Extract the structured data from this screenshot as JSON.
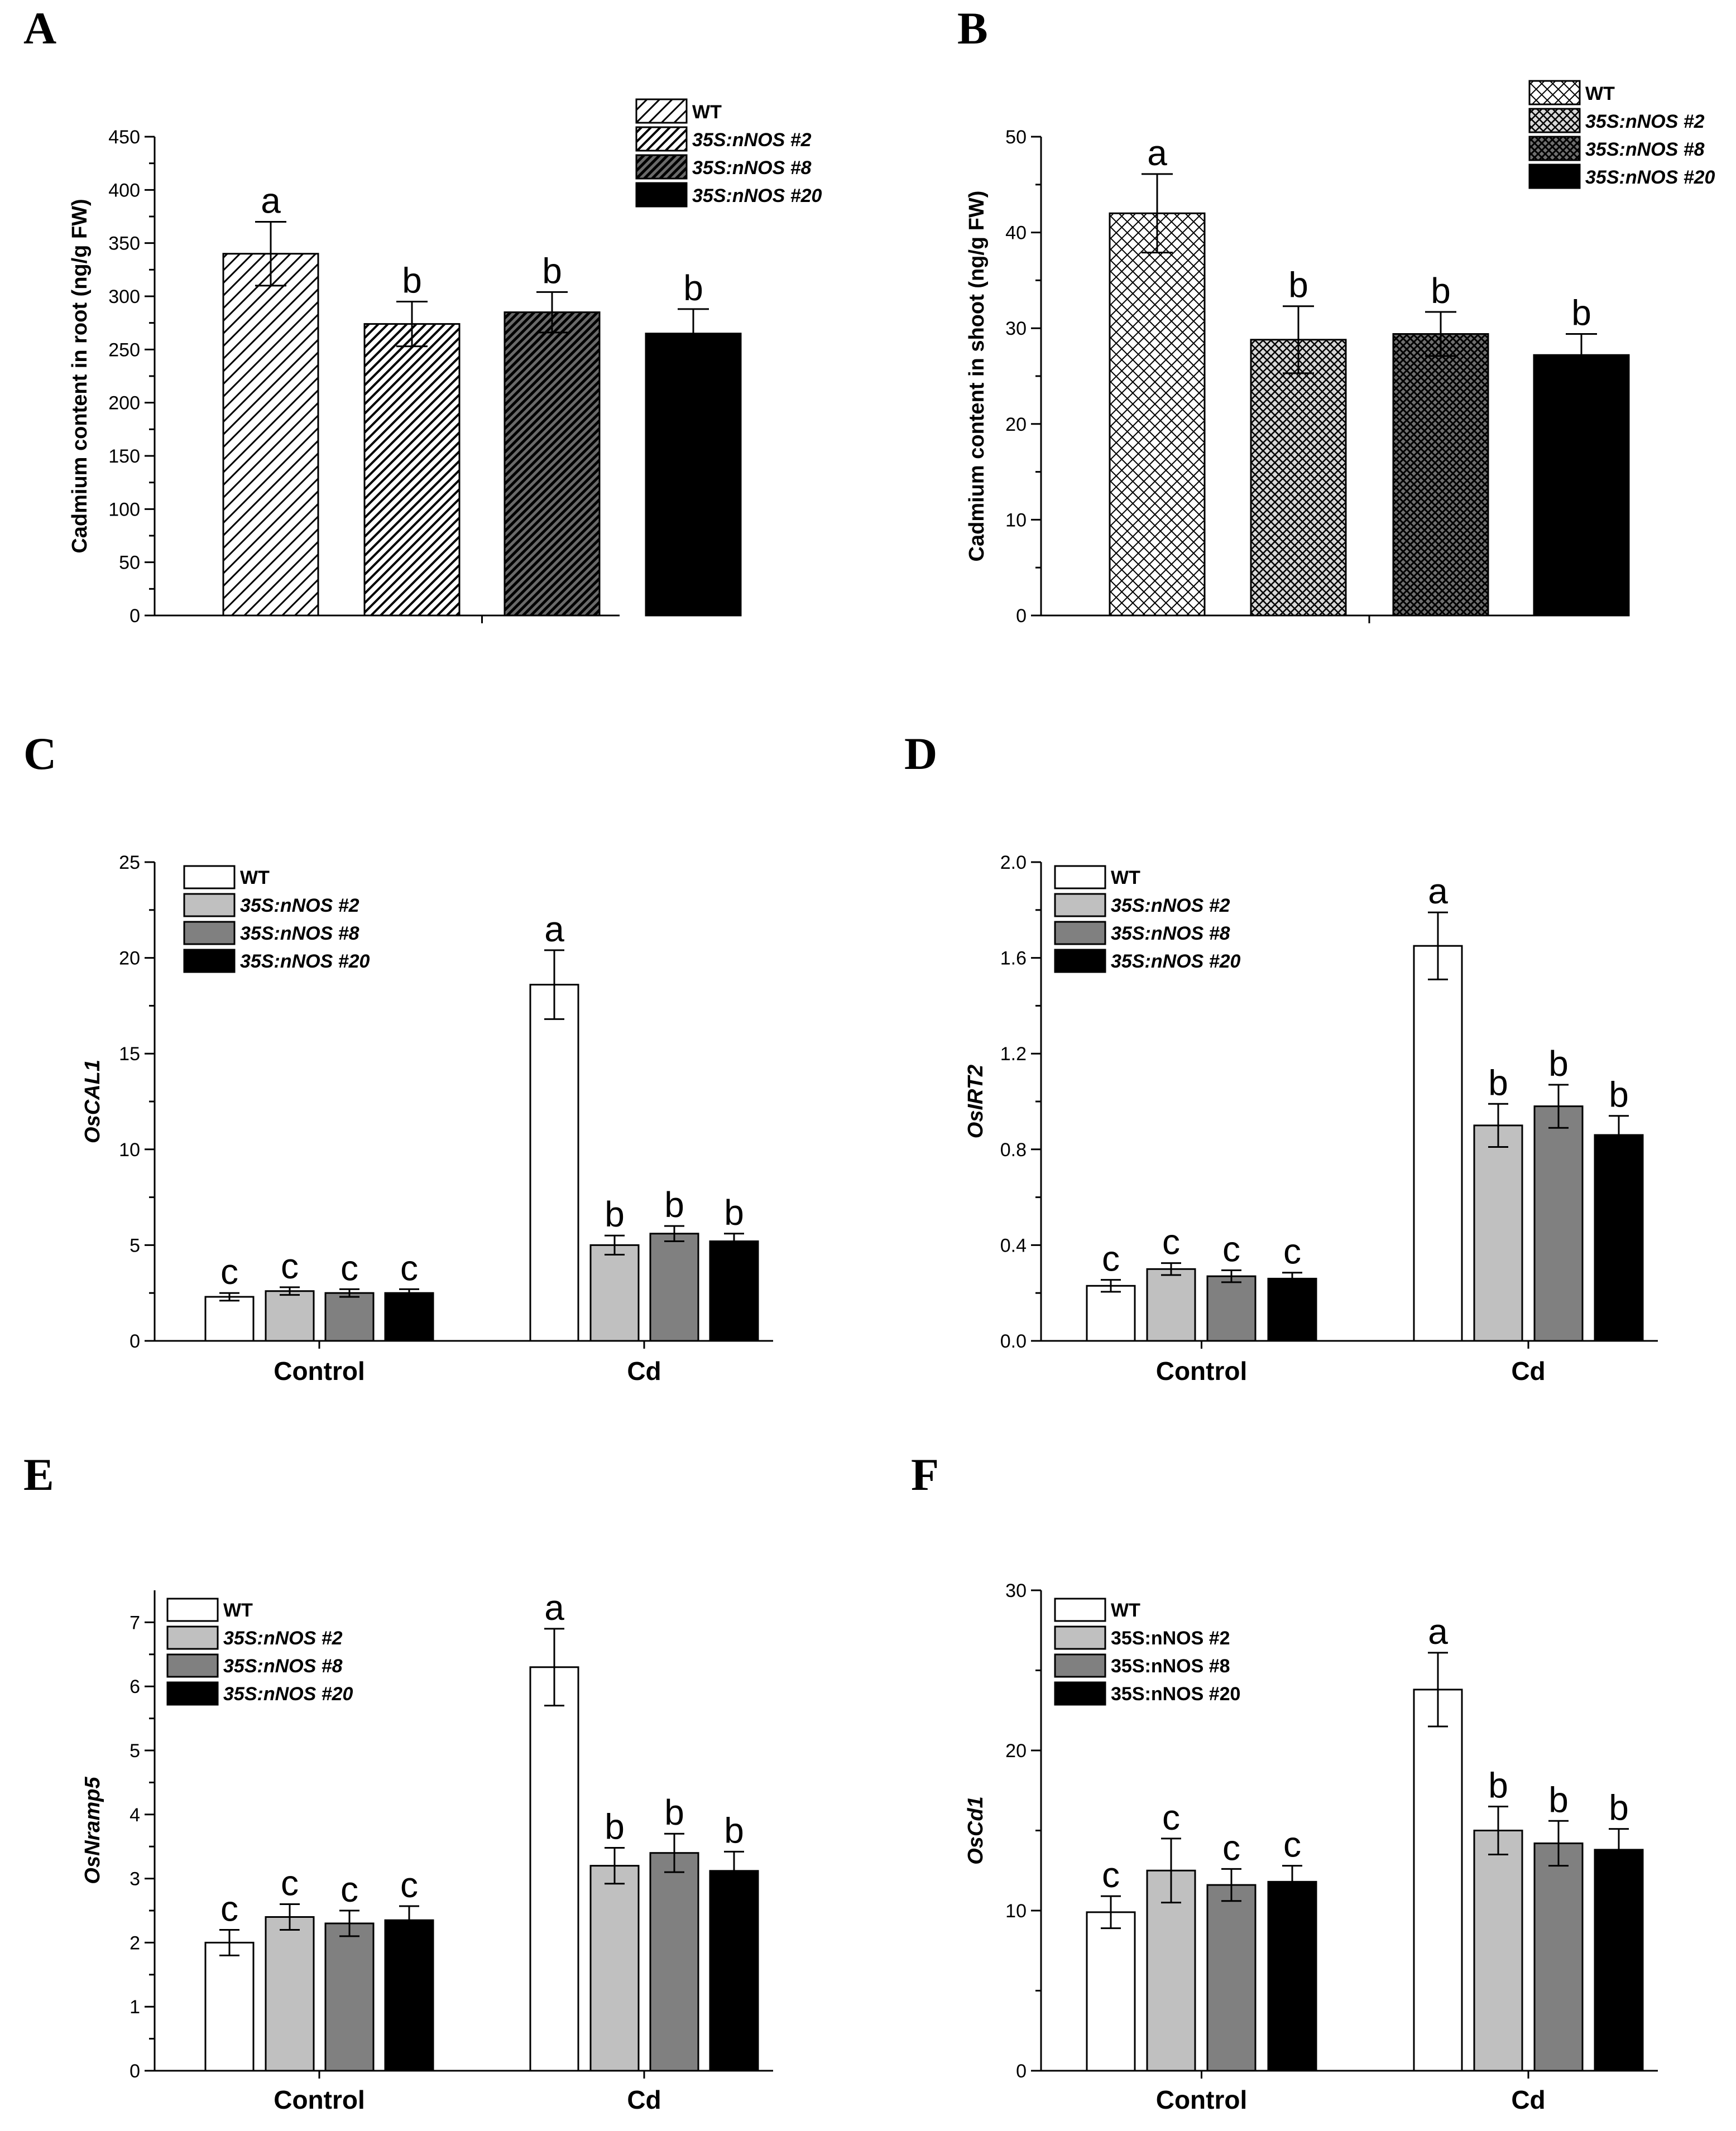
{
  "chart_data": [
    {
      "panel": "A",
      "type": "bar",
      "ylabel": "Cadmium content in root (ng/g FW)",
      "ylim": [
        0,
        450
      ],
      "yticks": [
        0,
        50,
        100,
        150,
        200,
        250,
        300,
        350,
        400,
        450
      ],
      "categories": [
        ""
      ],
      "series": [
        {
          "name": "WT",
          "values": [
            340
          ],
          "errors": [
            30
          ],
          "letters": [
            "a"
          ],
          "fill": "hatch-light"
        },
        {
          "name": "35S:nNOS #2",
          "values": [
            274
          ],
          "errors": [
            21
          ],
          "letters": [
            "b"
          ],
          "fill": "hatch-medium"
        },
        {
          "name": "35S:nNOS #8",
          "values": [
            285
          ],
          "errors": [
            19
          ],
          "letters": [
            "b"
          ],
          "fill": "hatch-dark"
        },
        {
          "name": "35S:nNOS #20",
          "values": [
            265
          ],
          "errors": [
            23
          ],
          "letters": [
            "b"
          ],
          "fill": "solid-black"
        }
      ],
      "legend": "top-right",
      "legend_italic": true
    },
    {
      "panel": "B",
      "type": "bar",
      "ylabel": "Cadmium content in shoot (ng/g FW)",
      "ylim": [
        0,
        50
      ],
      "yticks": [
        0,
        10,
        20,
        30,
        40,
        50
      ],
      "categories": [
        ""
      ],
      "series": [
        {
          "name": "WT",
          "values": [
            42
          ],
          "errors": [
            4.1
          ],
          "letters": [
            "a"
          ],
          "fill": "cross-light"
        },
        {
          "name": "35S:nNOS #2",
          "values": [
            28.8
          ],
          "errors": [
            3.5
          ],
          "letters": [
            "b"
          ],
          "fill": "cross-medium"
        },
        {
          "name": "35S:nNOS #8",
          "values": [
            29.4
          ],
          "errors": [
            2.3
          ],
          "letters": [
            "b"
          ],
          "fill": "cross-dark"
        },
        {
          "name": "35S:nNOS #20",
          "values": [
            27.2
          ],
          "errors": [
            2.2
          ],
          "letters": [
            "b"
          ],
          "fill": "solid-black"
        }
      ],
      "legend": "top-right",
      "legend_italic": true
    },
    {
      "panel": "C",
      "type": "bar",
      "ylabel": "OsCAL1",
      "ylim": [
        0,
        25
      ],
      "yticks": [
        0,
        5,
        10,
        15,
        20,
        25
      ],
      "categories": [
        "Control",
        "Cd"
      ],
      "series": [
        {
          "name": "WT",
          "values": [
            2.3,
            18.6
          ],
          "errors": [
            0.2,
            1.8
          ],
          "letters": [
            "c",
            "a"
          ],
          "fill": "white"
        },
        {
          "name": "35S:nNOS #2",
          "values": [
            2.6,
            5.0
          ],
          "errors": [
            0.2,
            0.5
          ],
          "letters": [
            "c",
            "b"
          ],
          "fill": "light-gray"
        },
        {
          "name": "35S:nNOS #8",
          "values": [
            2.5,
            5.6
          ],
          "errors": [
            0.2,
            0.4
          ],
          "letters": [
            "c",
            "b"
          ],
          "fill": "dark-gray"
        },
        {
          "name": "35S:nNOS #20",
          "values": [
            2.5,
            5.2
          ],
          "errors": [
            0.2,
            0.4
          ],
          "letters": [
            "c",
            "b"
          ],
          "fill": "black"
        }
      ],
      "legend": "top-left",
      "legend_italic": true
    },
    {
      "panel": "D",
      "type": "bar",
      "ylabel": "OsIRT2",
      "ylim": [
        0,
        2.0
      ],
      "yticks": [
        "0.0",
        "0.4",
        "0.8",
        "1.2",
        "1.6",
        "2.0"
      ],
      "categories": [
        "Control",
        "Cd"
      ],
      "series": [
        {
          "name": "WT",
          "values": [
            0.23,
            1.65
          ],
          "errors": [
            0.025,
            0.14
          ],
          "letters": [
            "c",
            "a"
          ],
          "fill": "white"
        },
        {
          "name": "35S:nNOS #2",
          "values": [
            0.3,
            0.9
          ],
          "errors": [
            0.025,
            0.09
          ],
          "letters": [
            "c",
            "b"
          ],
          "fill": "light-gray"
        },
        {
          "name": "35S:nNOS #8",
          "values": [
            0.27,
            0.98
          ],
          "errors": [
            0.025,
            0.09
          ],
          "letters": [
            "c",
            "b"
          ],
          "fill": "dark-gray"
        },
        {
          "name": "35S:nNOS #20",
          "values": [
            0.26,
            0.86
          ],
          "errors": [
            0.025,
            0.08
          ],
          "letters": [
            "c",
            "b"
          ],
          "fill": "black"
        }
      ],
      "legend": "top-left",
      "legend_italic": true
    },
    {
      "panel": "E",
      "type": "bar",
      "ylabel": "OsNramp5",
      "ylim": [
        0,
        7.5
      ],
      "yticks": [
        0,
        1,
        2,
        3,
        4,
        5,
        6,
        7
      ],
      "categories": [
        "Control",
        "Cd"
      ],
      "series": [
        {
          "name": "WT",
          "values": [
            2.0,
            6.3
          ],
          "errors": [
            0.2,
            0.6
          ],
          "letters": [
            "c",
            "a"
          ],
          "fill": "white"
        },
        {
          "name": "35S:nNOS #2",
          "values": [
            2.4,
            3.2
          ],
          "errors": [
            0.2,
            0.28
          ],
          "letters": [
            "c",
            "b"
          ],
          "fill": "light-gray"
        },
        {
          "name": "35S:nNOS #8",
          "values": [
            2.3,
            3.4
          ],
          "errors": [
            0.2,
            0.3
          ],
          "letters": [
            "c",
            "b"
          ],
          "fill": "dark-gray"
        },
        {
          "name": "35S:nNOS #20",
          "values": [
            2.35,
            3.12
          ],
          "errors": [
            0.22,
            0.3
          ],
          "letters": [
            "c",
            "b"
          ],
          "fill": "black"
        }
      ],
      "legend": "top-left",
      "legend_italic": true
    },
    {
      "panel": "F",
      "type": "bar",
      "ylabel": "OsCd1",
      "ylim": [
        0,
        30
      ],
      "yticks": [
        0,
        10,
        20,
        30
      ],
      "categories": [
        "Control",
        "Cd"
      ],
      "series": [
        {
          "name": "WT",
          "values": [
            9.9,
            23.8
          ],
          "errors": [
            1.0,
            2.3
          ],
          "letters": [
            "c",
            "a"
          ],
          "fill": "white"
        },
        {
          "name": "35S:nNOS #2",
          "values": [
            12.5,
            15.0
          ],
          "errors": [
            2.0,
            1.5
          ],
          "letters": [
            "c",
            "b"
          ],
          "fill": "light-gray"
        },
        {
          "name": "35S:nNOS #8",
          "values": [
            11.6,
            14.2
          ],
          "errors": [
            1.0,
            1.4
          ],
          "letters": [
            "c",
            "b"
          ],
          "fill": "dark-gray"
        },
        {
          "name": "35S:nNOS #20",
          "values": [
            11.8,
            13.8
          ],
          "errors": [
            1.0,
            1.3
          ],
          "letters": [
            "c",
            "b"
          ],
          "fill": "black"
        }
      ],
      "legend": "top-left",
      "legend_italic": false
    }
  ],
  "colors": {
    "white": "#ffffff",
    "light-gray": "#c0c0c0",
    "dark-gray": "#808080",
    "black": "#000000",
    "solid-black": "#000000",
    "axis": "#000000"
  }
}
